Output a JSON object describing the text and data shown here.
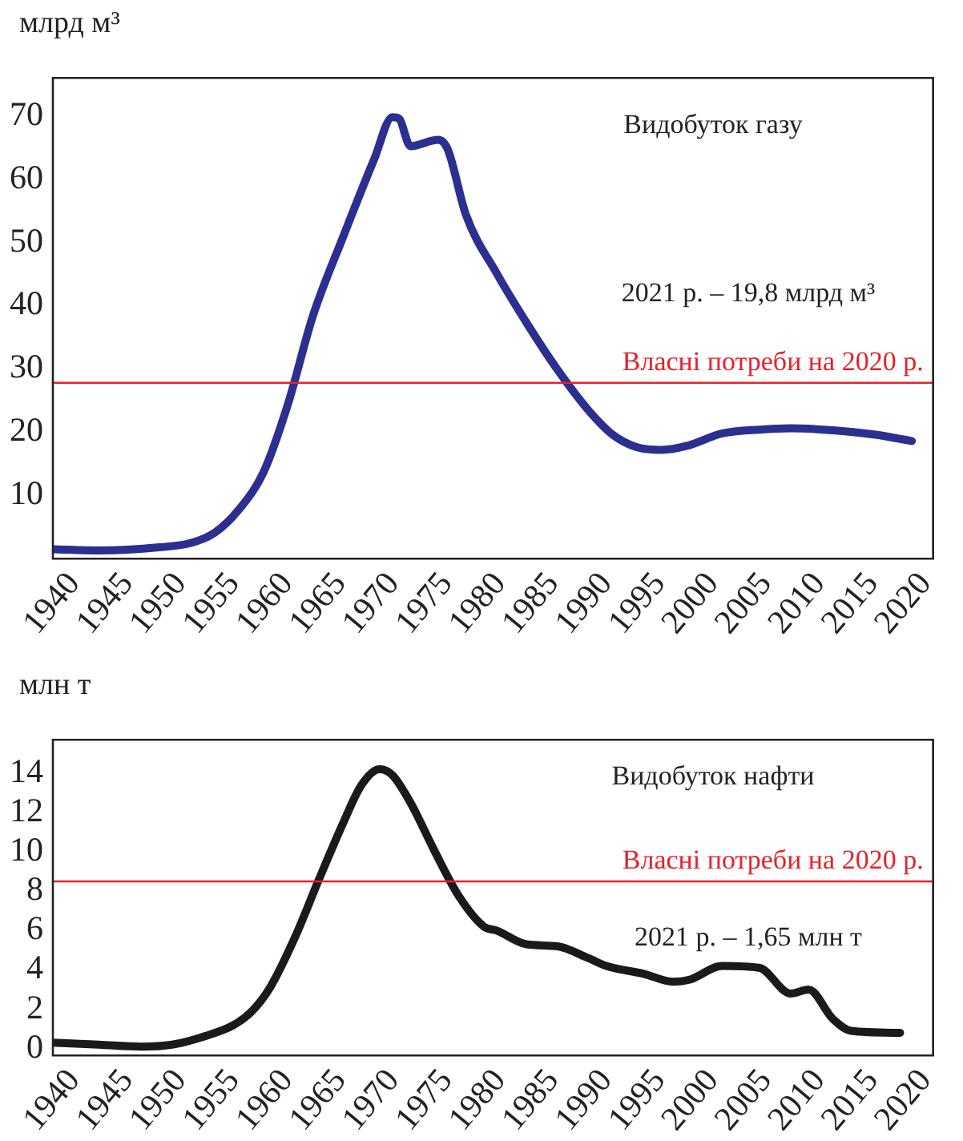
{
  "chart_data": [
    {
      "type": "line",
      "ylabel": "млрд м³",
      "annotations": [
        "Видобуток газу",
        "2021 р. – 19,8 млрд м³"
      ],
      "series": [
        {
          "color": "#2b2f8f",
          "x": [
            1938,
            1942.3,
            1948,
            1951,
            1953.2,
            1955.5,
            1957.8,
            1960.1,
            1962.4,
            1965.3,
            1968.2,
            1969.9,
            1970.5,
            1971.6,
            1974.2,
            1975.1,
            1976.8,
            1979.7,
            1982.5,
            1985.4,
            1988.3,
            1990.6,
            1992.9,
            1995.2,
            1997.5,
            2000.9,
            2004.4,
            2007.3,
            2011.3,
            2015.3,
            2018.7
          ],
          "values": [
            1.5,
            1.3,
            1.8,
            2.5,
            4.1,
            7.8,
            13.7,
            24.5,
            38.2,
            51,
            63.2,
            69.8,
            69.6,
            65.2,
            66.2,
            64.7,
            54.4,
            45.1,
            37.3,
            29.9,
            23.5,
            19.6,
            17.6,
            17.2,
            17.8,
            19.8,
            20.4,
            20.6,
            20.3,
            19.6,
            18.6
          ]
        }
      ],
      "xlim": [
        1938,
        2020.7
      ],
      "xticks": [
        1940,
        1945,
        1950,
        1955,
        1960,
        1965,
        1970,
        1975,
        1980,
        1985,
        1990,
        1995,
        2000,
        2005,
        2010,
        2015,
        2020
      ],
      "ylim": [
        0,
        76
      ],
      "yticks": [
        10,
        20,
        30,
        40,
        50,
        60,
        70
      ],
      "ref_lines": [
        {
          "axis": "y",
          "value": 27.8,
          "label": "Власні потреби на 2020 р.",
          "color": "#e8202a"
        }
      ],
      "grid": false,
      "legend": false,
      "marker": "none",
      "line_style": "solid"
    },
    {
      "type": "line",
      "ylabel": "млн т",
      "annotations": [
        "Видобуток нафти",
        "2021 р. – 1,65 млн т"
      ],
      "series": [
        {
          "color": "#1a1a1a",
          "x": [
            1938,
            1942.3,
            1946.3,
            1949.2,
            1952.1,
            1955,
            1956.7,
            1958.4,
            1960.7,
            1963,
            1965.3,
            1967,
            1968.7,
            1969.9,
            1971.6,
            1973.9,
            1976.2,
            1978.5,
            1979.7,
            1982.5,
            1985.4,
            1988.3,
            1990,
            1993.5,
            1996.3,
            1997.8,
            2000.9,
            2004.4,
            2007.3,
            2009,
            2011.3,
            2013,
            2017.6
          ],
          "values": [
            0.3,
            0.2,
            0.1,
            0.2,
            0.6,
            1.2,
            1.9,
            3.1,
            5.6,
            8.6,
            11.5,
            13.4,
            14.2,
            13.9,
            12.5,
            10,
            7.7,
            6.2,
            6,
            5.3,
            5.2,
            4.6,
            4.2,
            3.8,
            3.4,
            3.5,
            4.2,
            4.1,
            2.8,
            3,
            1.5,
            0.9,
            0.8
          ]
        }
      ],
      "xlim": [
        1938,
        2020.7
      ],
      "xticks": [
        1940,
        1945,
        1950,
        1955,
        1960,
        1965,
        1970,
        1975,
        1980,
        1985,
        1990,
        1995,
        2000,
        2005,
        2010,
        2015,
        2020
      ],
      "ylim": [
        -0.35,
        15.7
      ],
      "yticks": [
        0,
        2,
        4,
        6,
        8,
        10,
        12,
        14
      ],
      "ref_lines": [
        {
          "axis": "y",
          "value": 8.5,
          "label": "Власні потреби на 2020 р.",
          "color": "#e8202a"
        }
      ],
      "grid": false,
      "legend": false,
      "marker": "none",
      "line_style": "solid"
    }
  ]
}
